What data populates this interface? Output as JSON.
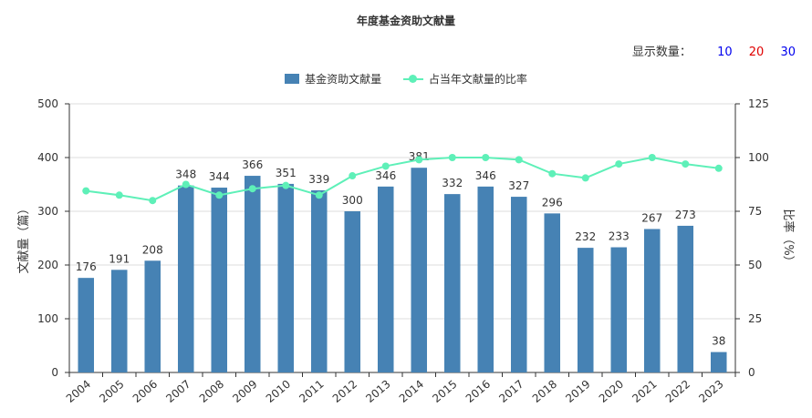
{
  "display_count": {
    "label": "显示数量：",
    "options": [
      {
        "label": "10",
        "color": "#0000ee"
      },
      {
        "label": "20",
        "color": "#e00000"
      },
      {
        "label": "30",
        "color": "#0000ee"
      }
    ]
  },
  "chart_data": {
    "type": "bar",
    "title": "年度基金资助文献量",
    "categories": [
      "2004",
      "2005",
      "2006",
      "2007",
      "2008",
      "2009",
      "2010",
      "2011",
      "2012",
      "2013",
      "2014",
      "2015",
      "2016",
      "2017",
      "2018",
      "2019",
      "2020",
      "2021",
      "2022",
      "2023"
    ],
    "series": [
      {
        "name": "基金资助文献量",
        "type": "bar",
        "axis": "left",
        "color": "#4682b4",
        "values": [
          176,
          191,
          208,
          348,
          344,
          366,
          351,
          339,
          300,
          346,
          381,
          332,
          346,
          327,
          296,
          232,
          233,
          267,
          273,
          38
        ]
      },
      {
        "name": "占当年文献量的比率",
        "type": "line",
        "axis": "right",
        "color": "#5ef0b8",
        "values": [
          84.5,
          82.5,
          80,
          87.5,
          82.5,
          85.5,
          87,
          82.5,
          91.5,
          96,
          99,
          100,
          100,
          99,
          92.5,
          90.5,
          97,
          100,
          97,
          95
        ]
      }
    ],
    "ylabel": "文献量（篇）",
    "ylabel_right": "比率（%）",
    "ylim": [
      0,
      500
    ],
    "yticks": [
      0,
      100,
      200,
      300,
      400,
      500
    ],
    "ylim_right": [
      0,
      125
    ],
    "yticks_right": [
      0,
      25,
      50,
      75,
      100,
      125
    ],
    "grid": true,
    "legend_position": "top-center"
  }
}
